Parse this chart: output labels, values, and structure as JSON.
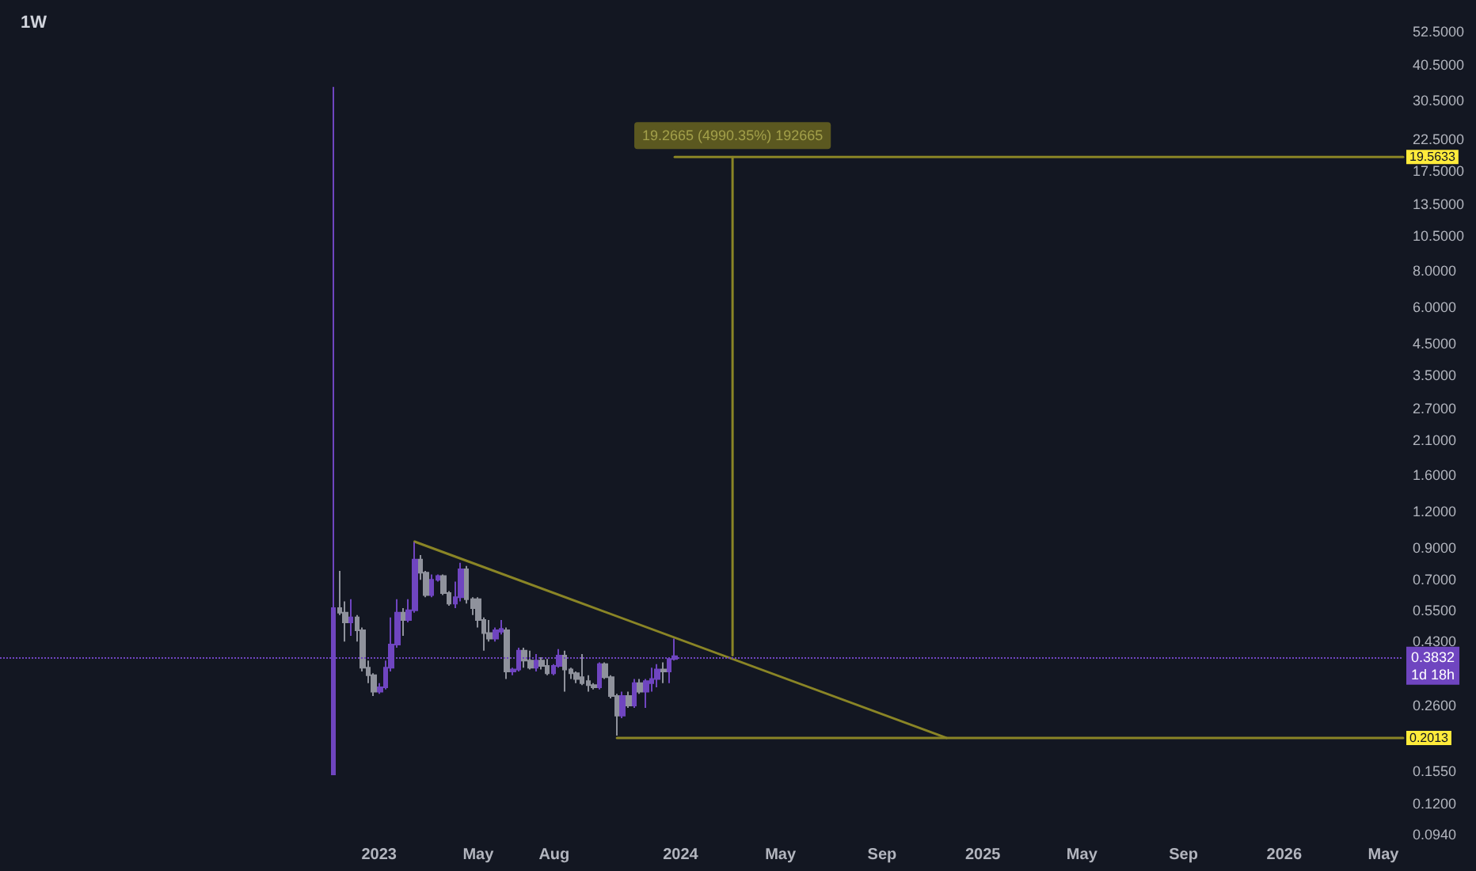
{
  "chart_data": {
    "type": "candlestick",
    "title": "1W",
    "x": [
      "2022-11-07",
      "2022-11-14",
      "2022-11-21",
      "2022-11-28",
      "2022-12-05",
      "2022-12-12",
      "2022-12-19",
      "2022-12-26",
      "2023-01-02",
      "2023-01-09",
      "2023-01-16",
      "2023-01-23",
      "2023-01-30",
      "2023-02-06",
      "2023-02-13",
      "2023-02-20",
      "2023-02-27",
      "2023-03-06",
      "2023-03-13",
      "2023-03-20",
      "2023-03-27",
      "2023-04-03",
      "2023-04-10",
      "2023-04-17",
      "2023-04-24",
      "2023-05-01",
      "2023-05-08",
      "2023-05-15",
      "2023-05-22",
      "2023-05-29",
      "2023-06-05",
      "2023-06-12",
      "2023-06-19",
      "2023-06-26",
      "2023-07-03",
      "2023-07-10",
      "2023-07-17",
      "2023-07-24",
      "2023-07-31",
      "2023-08-07",
      "2023-08-14",
      "2023-08-21",
      "2023-08-28",
      "2023-09-04",
      "2023-09-11",
      "2023-09-18",
      "2023-09-25",
      "2023-10-02",
      "2023-10-09",
      "2023-10-16",
      "2023-10-23",
      "2023-10-30",
      "2023-11-06",
      "2023-11-13",
      "2023-11-20",
      "2023-11-27",
      "2023-12-04",
      "2023-12-11",
      "2023-12-18",
      "2023-12-25"
    ],
    "ohlc": [
      [
        0.151,
        34,
        0.151,
        0.56
      ],
      [
        0.56,
        0.75,
        0.53,
        0.54
      ],
      [
        0.54,
        0.59,
        0.43,
        0.5
      ],
      [
        0.5,
        0.6,
        0.45,
        0.52
      ],
      [
        0.52,
        0.53,
        0.43,
        0.47
      ],
      [
        0.47,
        0.48,
        0.34,
        0.35
      ],
      [
        0.35,
        0.37,
        0.31,
        0.33
      ],
      [
        0.33,
        0.335,
        0.28,
        0.29
      ],
      [
        0.29,
        0.31,
        0.285,
        0.3
      ],
      [
        0.3,
        0.37,
        0.295,
        0.35
      ],
      [
        0.35,
        0.52,
        0.34,
        0.42
      ],
      [
        0.42,
        0.6,
        0.41,
        0.54
      ],
      [
        0.54,
        0.56,
        0.45,
        0.51
      ],
      [
        0.51,
        0.6,
        0.5,
        0.55
      ],
      [
        0.55,
        0.94,
        0.54,
        0.82
      ],
      [
        0.82,
        0.85,
        0.7,
        0.74
      ],
      [
        0.74,
        0.75,
        0.61,
        0.62
      ],
      [
        0.62,
        0.73,
        0.61,
        0.7
      ],
      [
        0.7,
        0.73,
        0.69,
        0.72
      ],
      [
        0.72,
        0.73,
        0.62,
        0.63
      ],
      [
        0.63,
        0.64,
        0.57,
        0.58
      ],
      [
        0.58,
        0.69,
        0.56,
        0.61
      ],
      [
        0.61,
        0.8,
        0.59,
        0.76
      ],
      [
        0.76,
        0.78,
        0.58,
        0.6
      ],
      [
        0.6,
        0.61,
        0.53,
        0.56
      ],
      [
        0.6,
        0.61,
        0.48,
        0.51
      ],
      [
        0.51,
        0.52,
        0.4,
        0.46
      ],
      [
        0.46,
        0.51,
        0.43,
        0.44
      ],
      [
        0.44,
        0.48,
        0.43,
        0.47
      ],
      [
        0.465,
        0.51,
        0.455,
        0.475
      ],
      [
        0.47,
        0.48,
        0.32,
        0.34
      ],
      [
        0.34,
        0.35,
        0.33,
        0.345
      ],
      [
        0.345,
        0.41,
        0.34,
        0.4
      ],
      [
        0.4,
        0.41,
        0.35,
        0.37
      ],
      [
        0.37,
        0.4,
        0.345,
        0.35
      ],
      [
        0.35,
        0.39,
        0.34,
        0.37
      ],
      [
        0.37,
        0.38,
        0.345,
        0.355
      ],
      [
        0.355,
        0.375,
        0.33,
        0.335
      ],
      [
        0.335,
        0.36,
        0.33,
        0.355
      ],
      [
        0.355,
        0.405,
        0.35,
        0.385
      ],
      [
        0.385,
        0.4,
        0.29,
        0.345
      ],
      [
        0.345,
        0.35,
        0.32,
        0.335
      ],
      [
        0.335,
        0.34,
        0.31,
        0.32
      ],
      [
        0.325,
        0.39,
        0.305,
        0.31
      ],
      [
        0.315,
        0.33,
        0.29,
        0.305
      ],
      [
        0.305,
        0.31,
        0.295,
        0.3
      ],
      [
        0.3,
        0.365,
        0.295,
        0.36
      ],
      [
        0.36,
        0.365,
        0.32,
        0.325
      ],
      [
        0.325,
        0.33,
        0.275,
        0.28
      ],
      [
        0.28,
        0.285,
        0.205,
        0.24
      ],
      [
        0.24,
        0.29,
        0.235,
        0.28
      ],
      [
        0.28,
        0.29,
        0.255,
        0.26
      ],
      [
        0.26,
        0.32,
        0.255,
        0.31
      ],
      [
        0.31,
        0.32,
        0.285,
        0.29
      ],
      [
        0.29,
        0.32,
        0.255,
        0.315
      ],
      [
        0.31,
        0.35,
        0.29,
        0.32
      ],
      [
        0.32,
        0.36,
        0.3,
        0.345
      ],
      [
        0.345,
        0.365,
        0.31,
        0.34
      ],
      [
        0.34,
        0.38,
        0.31,
        0.375
      ],
      [
        0.375,
        0.44,
        0.37,
        0.3832
      ]
    ],
    "colors": [
      "#6f45c0",
      "#8f929c",
      "#8f929c",
      "#6f45c0",
      "#8f929c",
      "#8f929c",
      "#8f929c",
      "#8f929c",
      "#6f45c0",
      "#6f45c0",
      "#6f45c0",
      "#6f45c0",
      "#8f929c",
      "#6f45c0",
      "#6f45c0",
      "#8f929c",
      "#8f929c",
      "#6f45c0",
      "#6f45c0",
      "#8f929c",
      "#8f929c",
      "#6f45c0",
      "#6f45c0",
      "#8f929c",
      "#8f929c",
      "#8f929c",
      "#8f929c",
      "#8f929c",
      "#6f45c0",
      "#6f45c0",
      "#8f929c",
      "#6f45c0",
      "#6f45c0",
      "#8f929c",
      "#8f929c",
      "#6f45c0",
      "#8f929c",
      "#8f929c",
      "#6f45c0",
      "#6f45c0",
      "#8f929c",
      "#8f929c",
      "#8f929c",
      "#8f929c",
      "#8f929c",
      "#8f929c",
      "#6f45c0",
      "#8f929c",
      "#8f929c",
      "#8f929c",
      "#6f45c0",
      "#8f929c",
      "#6f45c0",
      "#8f929c",
      "#6f45c0",
      "#6f45c0",
      "#6f45c0",
      "#8f929c",
      "#6f45c0",
      "#6f45c0"
    ],
    "series": [
      {
        "type": "line",
        "color": "#8a8526",
        "x": [
          "2023-02-13",
          "2024-11-18"
        ],
        "values": [
          0.945,
          0.2013
        ]
      },
      {
        "type": "line",
        "color": "#8a8526",
        "x": [
          "2023-10-16",
          "2026-05-25"
        ],
        "values": [
          0.2013,
          0.2013
        ]
      },
      {
        "type": "line",
        "color": "#8a8526",
        "x": [
          "2023-12-25",
          "2026-05-25"
        ],
        "values": [
          19.5633,
          19.5633
        ]
      },
      {
        "type": "line",
        "color": "#8a8526",
        "x": [
          "2024-03-04",
          "2024-03-04"
        ],
        "values": [
          0.386,
          19.5633
        ]
      }
    ],
    "ref_lines": [
      {
        "axis": "y",
        "value": 0.3832,
        "label": "0.3832\n1d 18h",
        "color": "#6f45c0",
        "line_style": "dotted"
      }
    ],
    "annotations": [
      {
        "text": "19.2665 (4990.35%) 192665",
        "x": "2024-03-04",
        "y": 19.5633
      },
      {
        "text": "19.5633",
        "x": "2026-05-25",
        "y": 19.5633
      },
      {
        "text": "0.2013",
        "x": "2026-05-25",
        "y": 0.2013
      }
    ],
    "log": "y",
    "xlim": [
      "2021-09-29",
      "2026-05-25"
    ],
    "xticks": [
      {
        "value": "2023-01-01",
        "label": "2023"
      },
      {
        "value": "2023-05-01",
        "label": "May"
      },
      {
        "value": "2023-08-01",
        "label": "Aug"
      },
      {
        "value": "2024-01-01",
        "label": "2024"
      },
      {
        "value": "2024-05-01",
        "label": "May"
      },
      {
        "value": "2024-09-01",
        "label": "Sep"
      },
      {
        "value": "2025-01-01",
        "label": "2025"
      },
      {
        "value": "2025-05-01",
        "label": "May"
      },
      {
        "value": "2025-09-01",
        "label": "Sep"
      },
      {
        "value": "2026-01-01",
        "label": "2026"
      },
      {
        "value": "2026-05-01",
        "label": "May"
      }
    ],
    "ylim": [
      0.094,
      52.5
    ],
    "yticks": [
      {
        "value": 0.094,
        "label": "0.0940"
      },
      {
        "value": 0.12,
        "label": "0.1200"
      },
      {
        "value": 0.155,
        "label": "0.1550"
      },
      {
        "value": 0.26,
        "label": "0.2600"
      },
      {
        "value": 0.43,
        "label": "0.4300"
      },
      {
        "value": 0.55,
        "label": "0.5500"
      },
      {
        "value": 0.7,
        "label": "0.7000"
      },
      {
        "value": 0.9,
        "label": "0.9000"
      },
      {
        "value": 1.2,
        "label": "1.2000"
      },
      {
        "value": 1.6,
        "label": "1.6000"
      },
      {
        "value": 2.1,
        "label": "2.1000"
      },
      {
        "value": 2.7,
        "label": "2.7000"
      },
      {
        "value": 3.5,
        "label": "3.5000"
      },
      {
        "value": 4.5,
        "label": "4.5000"
      },
      {
        "value": 6,
        "label": "6.0000"
      },
      {
        "value": 8,
        "label": "8.0000"
      },
      {
        "value": 10.5,
        "label": "10.5000"
      },
      {
        "value": 13.5,
        "label": "13.5000"
      },
      {
        "value": 17.5,
        "label": "17.5000"
      },
      {
        "value": 22.5,
        "label": "22.5000"
      },
      {
        "value": 30.5,
        "label": "30.5000"
      },
      {
        "value": 40.5,
        "label": "40.5000"
      },
      {
        "value": 52.5,
        "label": "52.5000"
      }
    ]
  }
}
